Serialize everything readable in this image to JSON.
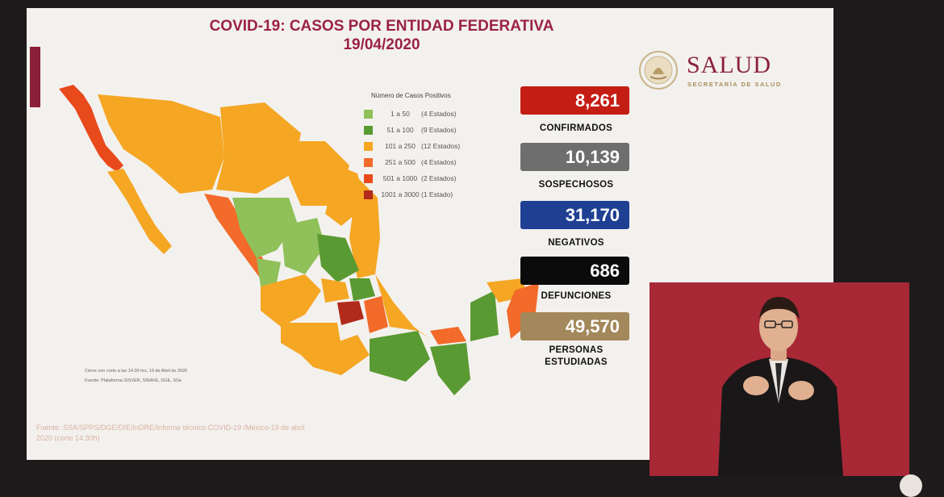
{
  "slide": {
    "title_line1": "COVID-19: CASOS POR ENTIDAD FEDERATIVA",
    "title_line2": "19/04/2020"
  },
  "logo": {
    "word": "SALUD",
    "subtitle": "SECRETARÍA DE SALUD"
  },
  "legend": {
    "title": "Número de Casos Positivos",
    "items": [
      {
        "range": "1 a 50",
        "count": "(4 Estados)",
        "color": "#8fc05a"
      },
      {
        "range": "51 a 100",
        "count": "(9 Estados)",
        "color": "#5a9a32"
      },
      {
        "range": "101 a 250",
        "count": "(12 Estados)",
        "color": "#f5a623"
      },
      {
        "range": "251 a 500",
        "count": "(4 Estados)",
        "color": "#f26b2a"
      },
      {
        "range": "501 a 1000",
        "count": "(2 Estados)",
        "color": "#e84a1c"
      },
      {
        "range": "1001 a 3000",
        "count": "(1 Estado)",
        "color": "#b12a1b"
      }
    ]
  },
  "stats": [
    {
      "value": "8,261",
      "label": "CONFIRMADOS",
      "color": "#c41d14"
    },
    {
      "value": "10,139",
      "label": "SOSPECHOSOS",
      "color": "#6e6e6e"
    },
    {
      "value": "31,170",
      "label": "NEGATIVOS",
      "color": "#1f3f93"
    },
    {
      "value": "686",
      "label": "DEFUNCIONES",
      "color": "#0b0b0b"
    },
    {
      "value": "49,570",
      "label_line1": "PERSONAS",
      "label_line2": "ESTUDIADAS",
      "color": "#a2885a"
    }
  ],
  "map_notes": {
    "cut": "Cierre con corte a las 14:30 hrs, 19 de Abril de 2020",
    "platform": "Fuente: Plataforma SISVER, SINAVE, DGE, SSa"
  },
  "source": {
    "line1": "Fuente: SSA/SPPS/DGE/DIE/InDRE/Informe técnico.COVID-19 /México-19 de abril",
    "line2": "2020 (corte 14:30h)"
  }
}
